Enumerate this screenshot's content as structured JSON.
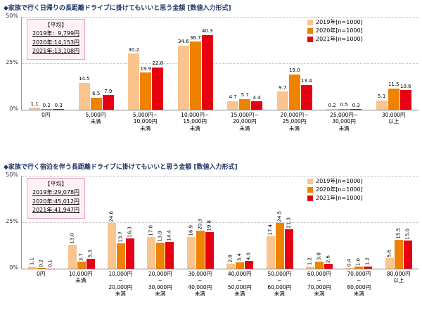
{
  "colors": {
    "series": [
      "#F9C48E",
      "#EF8200",
      "#E60012"
    ],
    "title_text": "#1F3864",
    "avg_box_bg": "#FEF2F6",
    "avg_box_border": "#F2A0BE"
  },
  "chart_data": [
    {
      "type": "bar",
      "title": "◆家族で行く日帰りの長距離ドライブに掛けてもいいと思う金額 [数値入力形式]",
      "unit": "%",
      "ylim": [
        0,
        50
      ],
      "yticks": [
        "50%",
        "25%",
        "0%"
      ],
      "grid": "dashed horizontal lines at 25% and 50%",
      "legend_position": "top-right",
      "legend": [
        "2019年[n=1000]",
        "2020年[n=1000]",
        "2021年[n=1000]"
      ],
      "annotation_avg": {
        "heading": "【平均】",
        "lines": [
          "2019年:  9,799円",
          "2020年:14,153円",
          "2021年:13,108円"
        ]
      },
      "categories": [
        "0円",
        "5,000円未満",
        "5,000円~10,000円未満",
        "10,000円~15,000円未満",
        "15,000円~20,000円未満",
        "20,000円~25,000円未満",
        "25,000円~30,000円未満",
        "30,000円以上"
      ],
      "categories_display": [
        [
          "0円"
        ],
        [
          "5,000円",
          "未満"
        ],
        [
          "5,000円~",
          "10,000円",
          "未満"
        ],
        [
          "10,000円~",
          "15,000円",
          "未満"
        ],
        [
          "15,000円~",
          "20,000円",
          "未満"
        ],
        [
          "20,000円~",
          "25,000円",
          "未満"
        ],
        [
          "25,000円~",
          "30,000円",
          "未満"
        ],
        [
          "30,000円",
          "以上"
        ]
      ],
      "series": [
        {
          "name": "2019年",
          "values": [
            1.1,
            14.5,
            30.2,
            34.6,
            4.7,
            9.7,
            0.2,
            5.1
          ]
        },
        {
          "name": "2020年",
          "values": [
            0.2,
            6.5,
            19.9,
            36.7,
            5.7,
            19.0,
            0.5,
            11.5
          ]
        },
        {
          "name": "2021年",
          "values": [
            0.3,
            7.9,
            22.8,
            40.3,
            4.4,
            13.4,
            0.3,
            10.6
          ]
        }
      ],
      "value_labels": "horizontal"
    },
    {
      "type": "bar",
      "title": "◆家族で行く宿泊を伴う長距離ドライブに掛けてもいいと思う金額 [数値入力形式]",
      "unit": "%",
      "ylim": [
        0,
        50
      ],
      "yticks": [
        "50%",
        "25%",
        "0%"
      ],
      "grid": "dashed horizontal lines at 25% and 50%",
      "legend_position": "top-right",
      "legend": [
        "2019年[n=1000]",
        "2020年[n=1000]",
        "2021年[n=1000]"
      ],
      "annotation_avg": {
        "heading": "【平均】",
        "lines": [
          "2019年:29,078円",
          "2020年:45,012円",
          "2021年:41,947円"
        ]
      },
      "categories": [
        "0円",
        "10,000円未満",
        "10,000円~20,000円未満",
        "20,000円~30,000円未満",
        "30,000円~40,000円未満",
        "40,000円~50,000円未満",
        "50,000円~60,000円未満",
        "60,000円~70,000円未満",
        "70,000円~80,000円未満",
        "80,000円以上"
      ],
      "categories_display": [
        [
          "0円"
        ],
        [
          "10,000円",
          "未満"
        ],
        [
          "10,000円",
          "~",
          "20,000円",
          "未満"
        ],
        [
          "20,000円",
          "~",
          "30,000円",
          "未満"
        ],
        [
          "30,000円",
          "~",
          "40,000円",
          "未満"
        ],
        [
          "40,000円",
          "~",
          "50,000円",
          "未満"
        ],
        [
          "50,000円",
          "~",
          "60,000円",
          "未満"
        ],
        [
          "60,000円",
          "~",
          "70,000円",
          "未満"
        ],
        [
          "70,000円",
          "~",
          "80,000円",
          "未満"
        ],
        [
          "80,000円",
          "以上"
        ]
      ],
      "series": [
        {
          "name": "2019年",
          "values": [
            1.1,
            13.0,
            24.6,
            17.0,
            16.9,
            2.8,
            17.4,
            1.2,
            0.4,
            5.6
          ]
        },
        {
          "name": "2020年",
          "values": [
            0.2,
            3.7,
            13.7,
            13.9,
            20.3,
            3.4,
            24.5,
            3.8,
            1.0,
            15.5
          ]
        },
        {
          "name": "2021年",
          "values": [
            0.1,
            5.3,
            16.3,
            14.4,
            19.8,
            4.0,
            21.3,
            2.6,
            1.2,
            15.0
          ]
        }
      ],
      "value_labels": "vertical"
    }
  ]
}
